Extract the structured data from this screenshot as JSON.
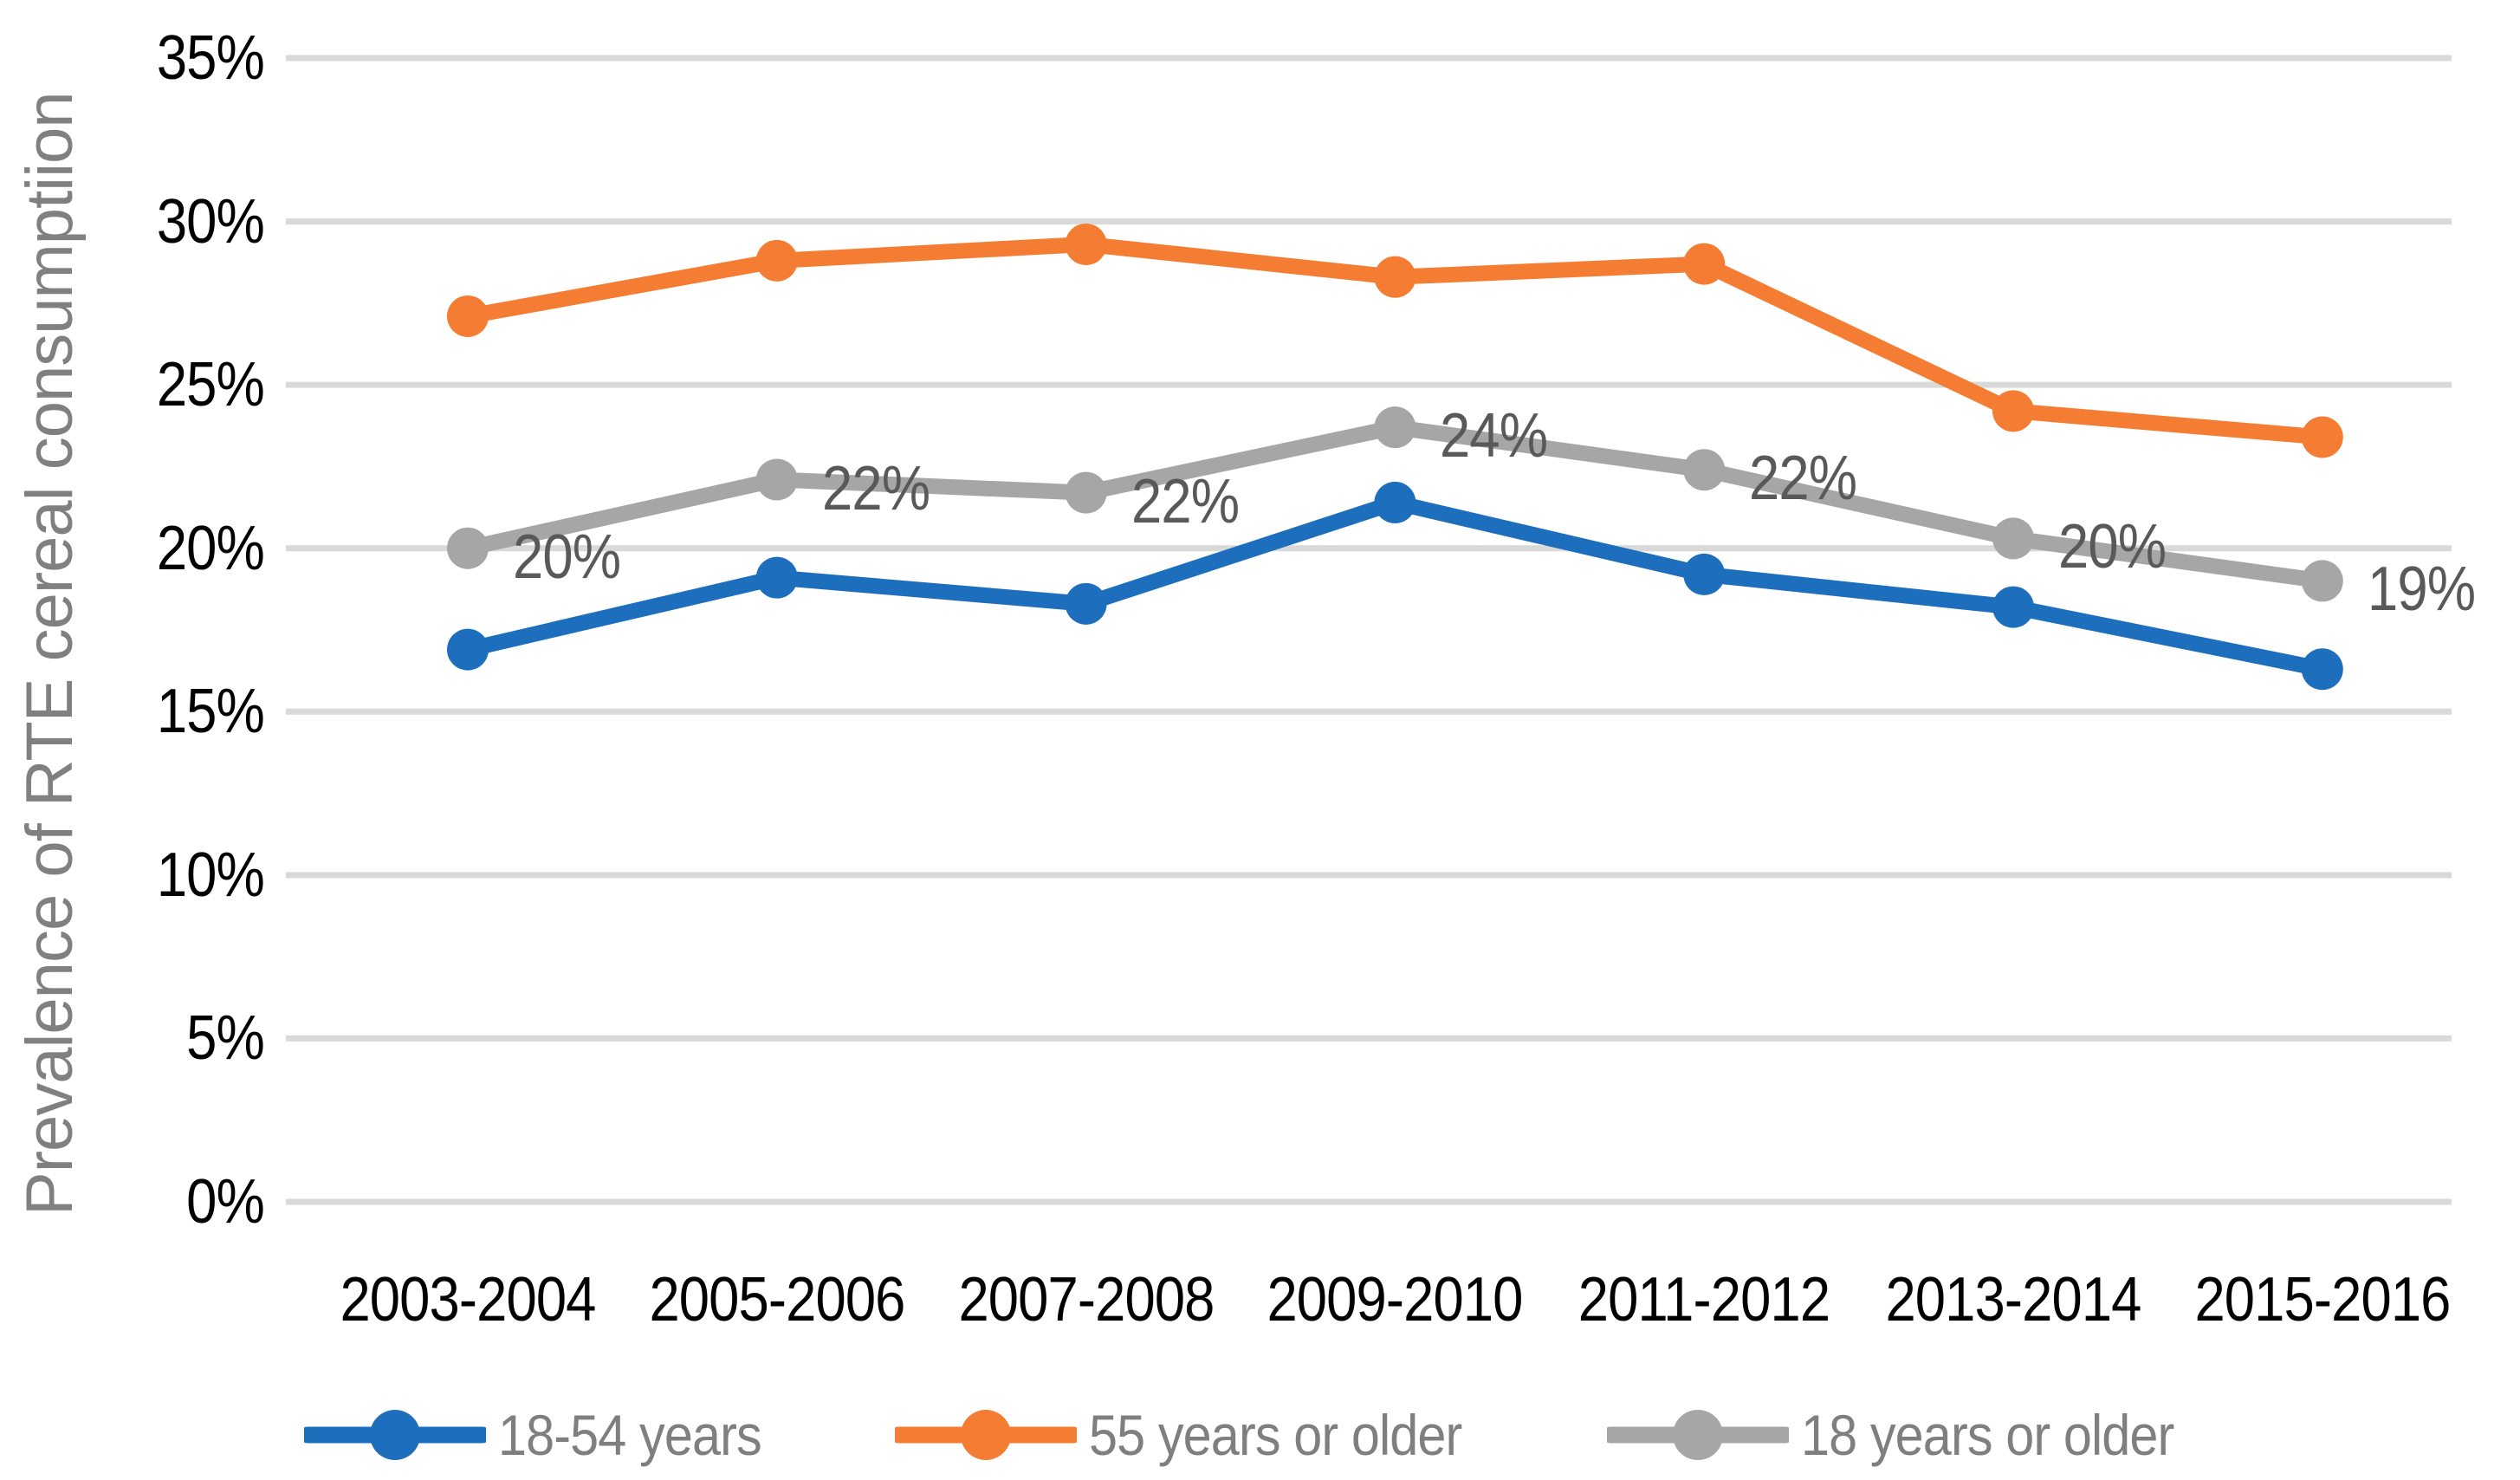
{
  "chart_data": {
    "type": "line",
    "title": "",
    "ylabel": "Prevalence of RTE cereal consumptiion",
    "xlabel": "",
    "ylim": [
      0,
      35
    ],
    "y_tick_labels": [
      "0%",
      "5%",
      "10%",
      "15%",
      "20%",
      "25%",
      "30%",
      "35%"
    ],
    "grid": true,
    "legend_position": "bottom",
    "categories": [
      "2003-2004",
      "2005-2006",
      "2007-2008",
      "2009-2010",
      "2011-2012",
      "2013-2014",
      "2015-2016"
    ],
    "series": [
      {
        "name": "18-54 years",
        "color": "#1E6EBE",
        "values": [
          16.9,
          19.1,
          18.3,
          21.4,
          19.2,
          18.2,
          16.3
        ]
      },
      {
        "name": "55 years or older",
        "color": "#F47D33",
        "values": [
          27.1,
          28.8,
          29.3,
          28.3,
          28.7,
          24.2,
          23.4
        ]
      },
      {
        "name": "18 years or older",
        "color": "#A6A6A6",
        "values": [
          20.0,
          22.1,
          21.7,
          23.7,
          22.4,
          20.3,
          19.0
        ],
        "data_labels": [
          "20%",
          "22%",
          "22%",
          "24%",
          "22%",
          "20%",
          "19%"
        ]
      }
    ],
    "styles": {
      "gridline_color": "#D9D9D9",
      "tick_label_color": "#000000",
      "axis_title_color": "#808080",
      "data_label_color": "#595959",
      "legend_text_color": "#7F7F7F",
      "background": "#FFFFFF"
    }
  }
}
